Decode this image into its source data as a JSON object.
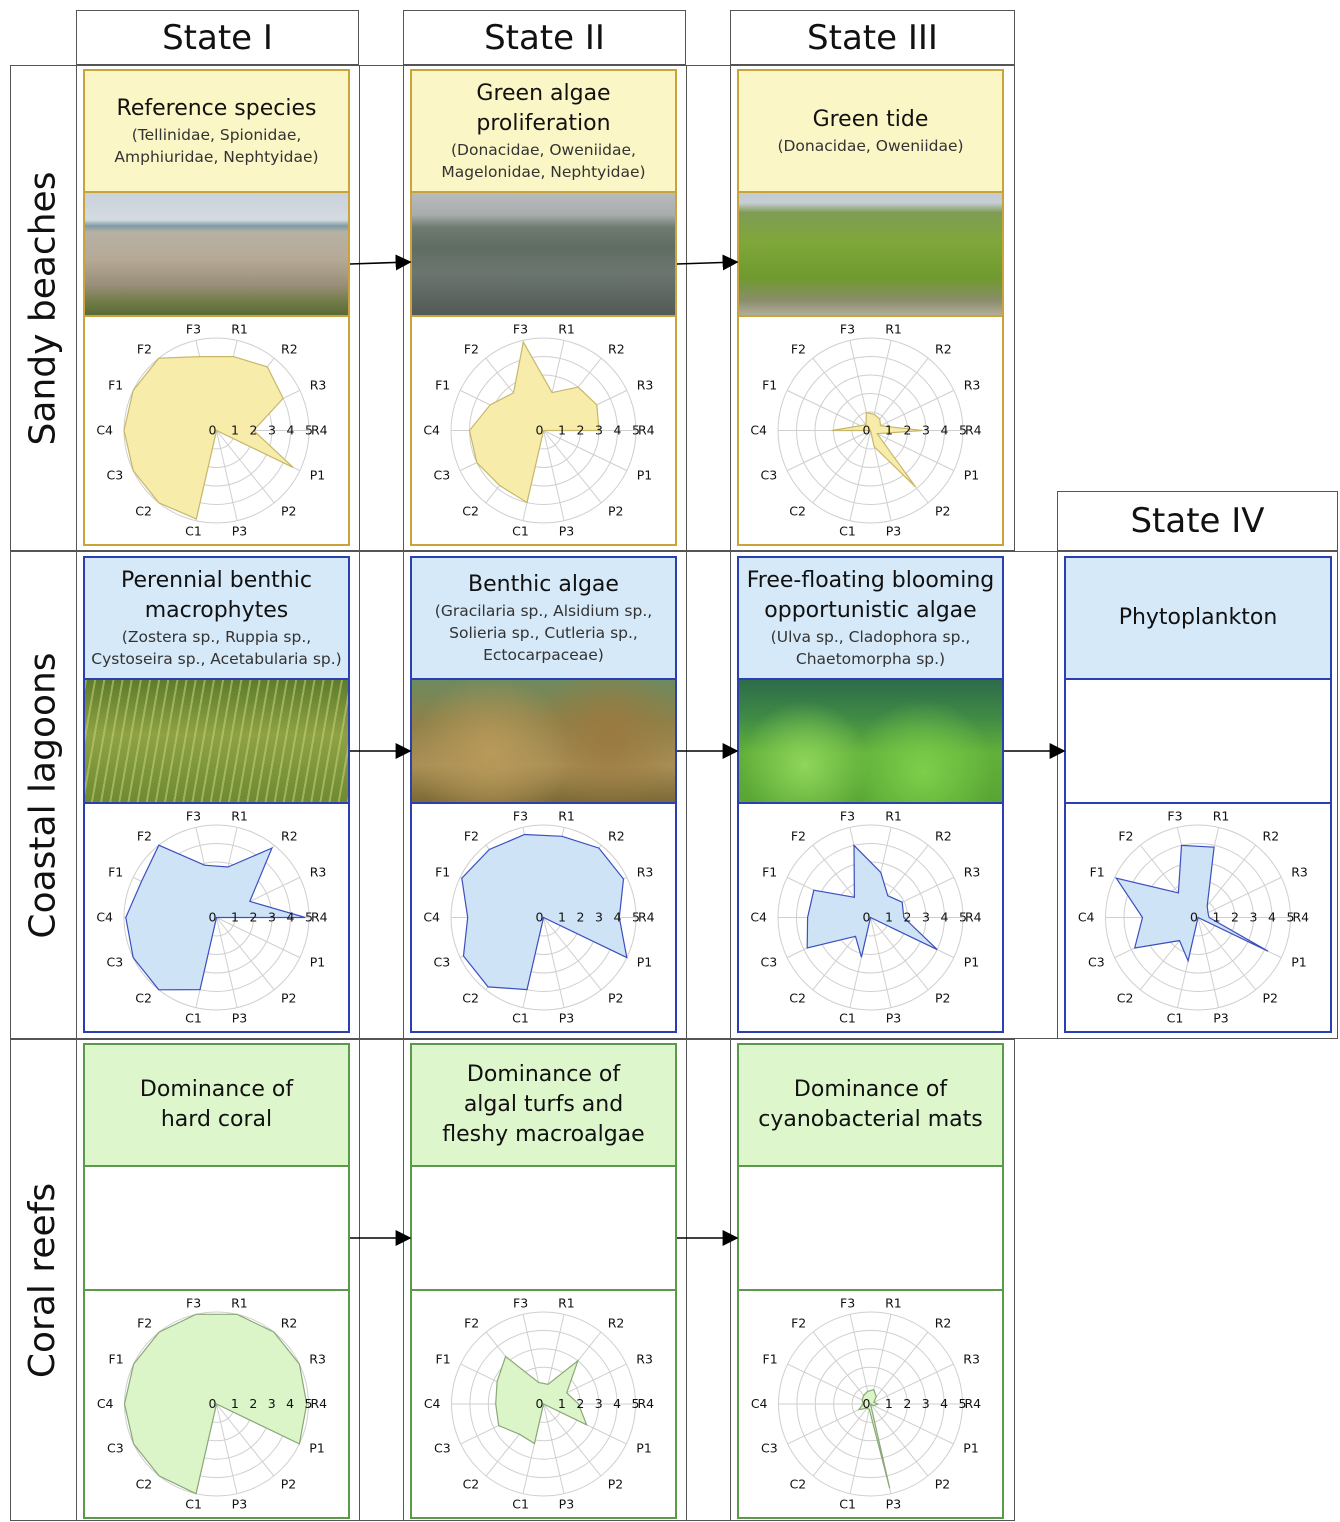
{
  "columns": [
    "State I",
    "State II",
    "State III",
    "State IV"
  ],
  "rows": [
    "Sandy beaches",
    "Coastal lagoons",
    "Coral reefs"
  ],
  "axes": [
    "R1",
    "R2",
    "R3",
    "R4",
    "P1",
    "P2",
    "P3",
    "C1",
    "C2",
    "C3",
    "C4",
    "F1",
    "F2",
    "F3"
  ],
  "ring_labels": [
    "0",
    "1",
    "2",
    "3",
    "4",
    "5"
  ],
  "scale_max": 5,
  "colors": {
    "sandy_border": "#c9a43a",
    "sandy_fill": "#fbf6c5",
    "sandy_radar": "#f8ecaa",
    "sandy_stroke": "#c6b76a",
    "lagoon_border": "#2a3fb0",
    "lagoon_fill": "#d6e9f8",
    "lagoon_radar": "#cfe3f7",
    "lagoon_stroke": "#3c4fbf",
    "coral_border": "#5b9a4a",
    "coral_fill": "#ddf6cc",
    "coral_radar": "#dcf5c8",
    "coral_stroke": "#8aa878"
  },
  "panels": [
    {
      "row": 0,
      "col": 0,
      "title": "Reference species",
      "subtitle": "(Tellinidae, Spionidae,\nAmphiuridae, Nephtyidae)",
      "photo": "sandy-beach-photo",
      "values": [
        4.1,
        4.4,
        4.0,
        2.0,
        4.6,
        0.0,
        0.0,
        4.9,
        5.0,
        5.0,
        5.0,
        5.0,
        5.0,
        4.1
      ]
    },
    {
      "row": 0,
      "col": 1,
      "title": "Green algae\nproliferation",
      "subtitle": "(Donacidae, Oweniidae,\nMagelonidae, Nephtyidae)",
      "photo": "green-algae-beach-photo",
      "values": [
        2.1,
        3.0,
        3.2,
        3.0,
        0.0,
        0.0,
        0.0,
        4.0,
        3.8,
        4.0,
        4.0,
        3.2,
        2.6,
        4.9
      ]
    },
    {
      "row": 0,
      "col": 2,
      "title": "Green tide",
      "subtitle": "(Donacidae, Oweniidae)",
      "photo": "green-tide-photo",
      "values": [
        0.9,
        0.8,
        0.6,
        2.8,
        0.4,
        3.9,
        0.9,
        0.0,
        0.0,
        0.0,
        2.1,
        0.6,
        0.4,
        1.0
      ]
    },
    {
      "row": 1,
      "col": 0,
      "title": "Perennial benthic\nmacrophytes",
      "subtitle": "(Zostera sp., Ruppia sp.,\nCystoseira sp., Acetabularia sp.)",
      "photo": "seagrass-photo",
      "values": [
        2.8,
        4.8,
        2.0,
        4.8,
        0.0,
        0.0,
        0.0,
        4.0,
        5.0,
        5.0,
        4.9,
        4.5,
        5.0,
        2.9
      ]
    },
    {
      "row": 1,
      "col": 1,
      "title": "Benthic algae",
      "subtitle": "(Gracilaria sp., Alsidium sp.,\nSolieria sp., Cutleria sp.,\nEctocarpaceae)",
      "photo": "benthic-algae-photo",
      "values": [
        4.5,
        4.8,
        4.8,
        4.1,
        5.0,
        0.0,
        0.0,
        4.0,
        4.8,
        4.8,
        4.1,
        4.9,
        4.7,
        4.6
      ]
    },
    {
      "row": 1,
      "col": 2,
      "title": "Free-floating blooming\nopportunistic algae",
      "subtitle": "(Ulva sp., Cladophora sp.,\nChaetomorpha sp.)",
      "photo": "floating-algae-photo",
      "values": [
        2.5,
        1.5,
        1.9,
        1.8,
        4.0,
        0.0,
        0.0,
        2.2,
        1.3,
        3.8,
        3.4,
        3.4,
        1.4,
        4.0
      ]
    },
    {
      "row": 1,
      "col": 3,
      "title": "Phytoplankton",
      "subtitle": "",
      "photo": "",
      "values": [
        3.9,
        0.8,
        0.6,
        0.6,
        4.2,
        0.0,
        0.0,
        2.4,
        1.6,
        3.8,
        3.0,
        4.9,
        1.7,
        4.0
      ]
    },
    {
      "row": 2,
      "col": 0,
      "title": "Dominance of\nhard coral",
      "subtitle": "",
      "photo": "",
      "values": [
        5.0,
        5.0,
        5.0,
        4.9,
        5.0,
        0.0,
        0.0,
        5.0,
        5.0,
        5.0,
        5.0,
        5.0,
        5.0,
        5.0
      ]
    },
    {
      "row": 2,
      "col": 1,
      "title": "Dominance of\nalgal turfs and\nfleshy macroalgae",
      "subtitle": "",
      "photo": "",
      "values": [
        1.1,
        3.0,
        1.4,
        1.9,
        2.6,
        0.0,
        0.0,
        2.2,
        2.1,
        2.7,
        2.6,
        2.8,
        3.3,
        1.2
      ]
    },
    {
      "row": 2,
      "col": 2,
      "title": "Dominance of\ncyanobacterial mats",
      "subtitle": "",
      "photo": "",
      "values": [
        0.8,
        0.5,
        0.2,
        0.4,
        0.2,
        0.0,
        4.7,
        0.3,
        0.3,
        0.7,
        0.4,
        0.5,
        0.6,
        0.7
      ]
    }
  ]
}
